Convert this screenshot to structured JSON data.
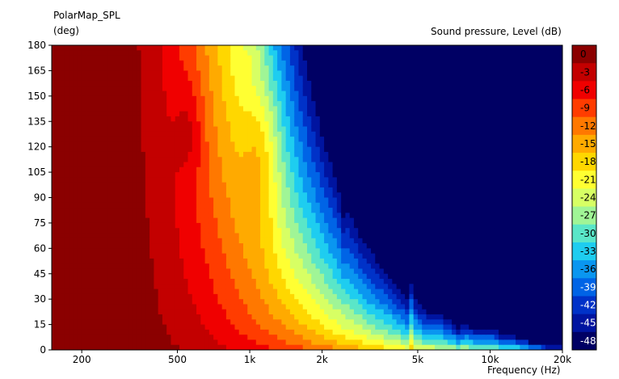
{
  "chart_data": {
    "type": "heatmap",
    "title": "PolarMap_SPL",
    "ylabel": "(deg)",
    "xlabel": "Frequency  (Hz)",
    "colorbar_label": "Sound pressure, Level  (dB)",
    "x_scale": "log",
    "xlim": [
      150,
      20000
    ],
    "ylim": [
      0,
      180
    ],
    "x_ticks": [
      {
        "value": 200,
        "label": "200"
      },
      {
        "value": 500,
        "label": "500"
      },
      {
        "value": 1000,
        "label": "1k"
      },
      {
        "value": 2000,
        "label": "2k"
      },
      {
        "value": 5000,
        "label": "5k"
      },
      {
        "value": 10000,
        "label": "10k"
      },
      {
        "value": 20000,
        "label": "20k"
      }
    ],
    "y_ticks": [
      0,
      15,
      30,
      45,
      60,
      75,
      90,
      105,
      120,
      135,
      150,
      165,
      180
    ],
    "levels": [
      {
        "label": "0",
        "color": "#8b0000"
      },
      {
        "label": "-3",
        "color": "#c30000"
      },
      {
        "label": "-6",
        "color": "#f00000"
      },
      {
        "label": "-9",
        "color": "#ff3c00"
      },
      {
        "label": "-12",
        "color": "#ff7800"
      },
      {
        "label": "-15",
        "color": "#ffaa00"
      },
      {
        "label": "-18",
        "color": "#ffd700"
      },
      {
        "label": "-21",
        "color": "#ffff32"
      },
      {
        "label": "-24",
        "color": "#d7ff64"
      },
      {
        "label": "-27",
        "color": "#a0f596"
      },
      {
        "label": "-30",
        "color": "#5ae6c8"
      },
      {
        "label": "-33",
        "color": "#1ecdf0"
      },
      {
        "label": "-36",
        "color": "#0a96f0"
      },
      {
        "label": "-39",
        "color": "#0064e6"
      },
      {
        "label": "-42",
        "color": "#0032c8"
      },
      {
        "label": "-45",
        "color": "#0014a0"
      },
      {
        "label": "-48",
        "color": "#000064"
      }
    ],
    "colorbar_ticks": [
      "0",
      "-3",
      "-6",
      "-9",
      "-12",
      "-15",
      "-18",
      "-21",
      "-24",
      "-27",
      "-30",
      "-33",
      "-36",
      "-39",
      "-42",
      "-45",
      "-48"
    ]
  }
}
